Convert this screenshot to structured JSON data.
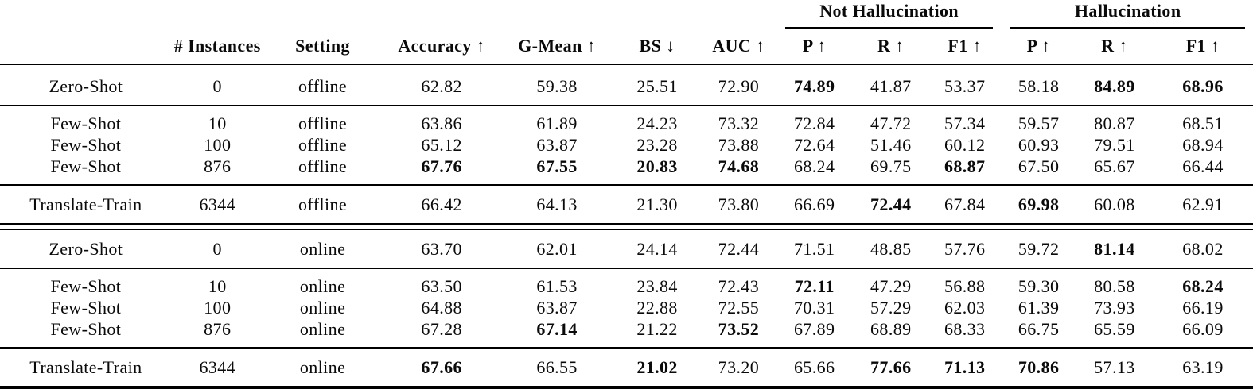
{
  "table": {
    "group_headers": {
      "not_hallucination": "Not Hallucination",
      "hallucination": "Hallucination"
    },
    "columns": [
      "",
      "# Instances",
      "Setting",
      "Accuracy ↑",
      "G-Mean ↑",
      "BS ↓",
      "AUC ↑",
      "P ↑",
      "R ↑",
      "F1 ↑",
      "P ↑",
      "R ↑",
      "F1 ↑"
    ],
    "blocks": [
      {
        "rows": [
          {
            "label": "Zero-Shot",
            "instances": "0",
            "setting": "offline",
            "values": [
              "62.82",
              "59.38",
              "25.51",
              "72.90",
              "74.89",
              "41.87",
              "53.37",
              "58.18",
              "84.89",
              "68.96"
            ],
            "bold": [
              4,
              8,
              9
            ]
          }
        ]
      },
      {
        "rows": [
          {
            "label": "Few-Shot",
            "instances": "10",
            "setting": "offline",
            "values": [
              "63.86",
              "61.89",
              "24.23",
              "73.32",
              "72.84",
              "47.72",
              "57.34",
              "59.57",
              "80.87",
              "68.51"
            ],
            "bold": []
          },
          {
            "label": "Few-Shot",
            "instances": "100",
            "setting": "offline",
            "values": [
              "65.12",
              "63.87",
              "23.28",
              "73.88",
              "72.64",
              "51.46",
              "60.12",
              "60.93",
              "79.51",
              "68.94"
            ],
            "bold": []
          },
          {
            "label": "Few-Shot",
            "instances": "876",
            "setting": "offline",
            "values": [
              "67.76",
              "67.55",
              "20.83",
              "74.68",
              "68.24",
              "69.75",
              "68.87",
              "67.50",
              "65.67",
              "66.44"
            ],
            "bold": [
              0,
              1,
              2,
              3,
              6
            ]
          }
        ]
      },
      {
        "rows": [
          {
            "label": "Translate-Train",
            "instances": "6344",
            "setting": "offline",
            "values": [
              "66.42",
              "64.13",
              "21.30",
              "73.80",
              "66.69",
              "72.44",
              "67.84",
              "69.98",
              "60.08",
              "62.91"
            ],
            "bold": [
              5,
              7
            ]
          }
        ]
      },
      {
        "rows": [
          {
            "label": "Zero-Shot",
            "instances": "0",
            "setting": "online",
            "values": [
              "63.70",
              "62.01",
              "24.14",
              "72.44",
              "71.51",
              "48.85",
              "57.76",
              "59.72",
              "81.14",
              "68.02"
            ],
            "bold": [
              8
            ]
          }
        ]
      },
      {
        "rows": [
          {
            "label": "Few-Shot",
            "instances": "10",
            "setting": "online",
            "values": [
              "63.50",
              "61.53",
              "23.84",
              "72.43",
              "72.11",
              "47.29",
              "56.88",
              "59.30",
              "80.58",
              "68.24"
            ],
            "bold": [
              4,
              9
            ]
          },
          {
            "label": "Few-Shot",
            "instances": "100",
            "setting": "online",
            "values": [
              "64.88",
              "63.87",
              "22.88",
              "72.55",
              "70.31",
              "57.29",
              "62.03",
              "61.39",
              "73.93",
              "66.19"
            ],
            "bold": []
          },
          {
            "label": "Few-Shot",
            "instances": "876",
            "setting": "online",
            "values": [
              "67.28",
              "67.14",
              "21.22",
              "73.52",
              "67.89",
              "68.89",
              "68.33",
              "66.75",
              "65.59",
              "66.09"
            ],
            "bold": [
              1,
              3
            ]
          }
        ]
      },
      {
        "rows": [
          {
            "label": "Translate-Train",
            "instances": "6344",
            "setting": "online",
            "values": [
              "67.66",
              "66.55",
              "21.02",
              "73.20",
              "65.66",
              "77.66",
              "71.13",
              "70.86",
              "57.13",
              "63.19"
            ],
            "bold": [
              0,
              2,
              5,
              6,
              7
            ]
          }
        ]
      }
    ]
  }
}
